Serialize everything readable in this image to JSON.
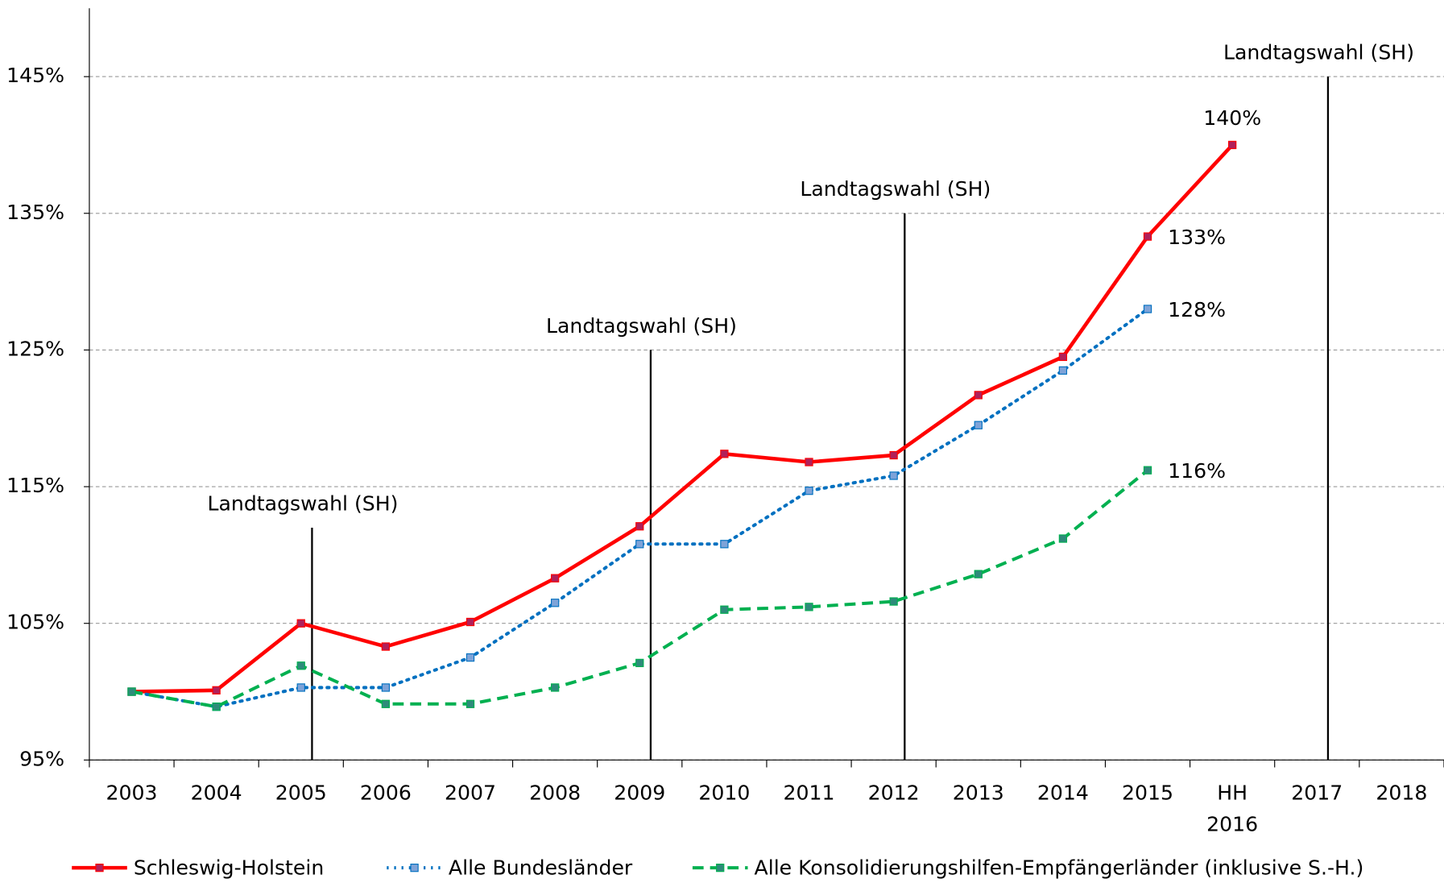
{
  "chart_data": {
    "type": "line",
    "categories": [
      "2003",
      "2004",
      "2005",
      "2006",
      "2007",
      "2008",
      "2009",
      "2010",
      "2011",
      "2012",
      "2013",
      "2014",
      "2015",
      "HH 2016",
      "2017",
      "2018"
    ],
    "ylim": [
      95,
      150
    ],
    "yticks": [
      {
        "value": 95,
        "label": "95%"
      },
      {
        "value": 105,
        "label": "105%"
      },
      {
        "value": 115,
        "label": "115%"
      },
      {
        "value": 125,
        "label": "125%"
      },
      {
        "value": 135,
        "label": "135%"
      },
      {
        "value": 145,
        "label": "145%"
      }
    ],
    "grid": true,
    "legend": "bottom",
    "series": [
      {
        "name": "Schleswig-Holstein",
        "color": "#ff0000",
        "marker_color": "#b0205a",
        "style": "solid",
        "values": [
          100,
          100.1,
          105.0,
          103.3,
          105.1,
          108.3,
          112.1,
          117.4,
          116.8,
          117.3,
          121.7,
          124.5,
          133.3,
          140.0,
          null,
          null
        ],
        "value_labels": [
          null,
          null,
          null,
          null,
          null,
          null,
          null,
          null,
          null,
          null,
          null,
          null,
          "133%",
          "140%",
          null,
          null
        ]
      },
      {
        "name": "Alle Bundesländer",
        "color": "#0070c0",
        "marker_color": "#7ea3d8",
        "style": "dotted",
        "values": [
          100,
          98.9,
          100.3,
          100.3,
          102.5,
          106.5,
          110.8,
          110.8,
          114.7,
          115.8,
          119.5,
          123.5,
          128.0,
          null,
          null,
          null
        ],
        "value_labels": [
          null,
          null,
          null,
          null,
          null,
          null,
          null,
          null,
          null,
          null,
          null,
          null,
          "128%",
          null,
          null,
          null
        ]
      },
      {
        "name": "Alle Konsolidierungshilfen-Empfängerländer (inklusive S.-H.)",
        "color": "#00b050",
        "marker_color": "#2e8b7a",
        "style": "dashed",
        "values": [
          100,
          98.9,
          101.9,
          99.1,
          99.1,
          100.3,
          102.1,
          106.0,
          106.2,
          106.6,
          108.6,
          111.2,
          116.2,
          null,
          null,
          null
        ],
        "value_labels": [
          null,
          null,
          null,
          null,
          null,
          null,
          null,
          null,
          null,
          null,
          null,
          null,
          "116%",
          null,
          null,
          null
        ]
      }
    ],
    "annotations": [
      {
        "text": "Landtagswahl (SH)",
        "category": "2005",
        "y": 112
      },
      {
        "text": "Landtagswahl (SH)",
        "category": "2009",
        "y": 125
      },
      {
        "text": "Landtagswahl (SH)",
        "category": "2012",
        "y": 135
      },
      {
        "text": "Landtagswahl (SH)",
        "category": "2017",
        "y": 145
      }
    ]
  }
}
